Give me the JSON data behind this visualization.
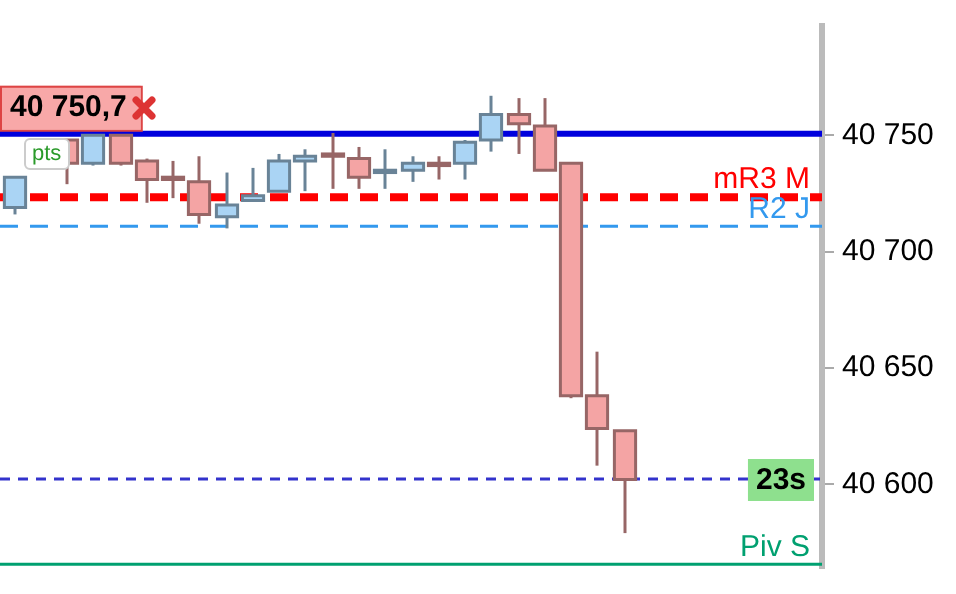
{
  "chart_data": {
    "type": "candlestick",
    "categories": [
      null,
      null,
      null,
      null,
      null,
      null,
      null,
      null,
      null,
      null,
      null,
      null,
      null,
      null,
      null,
      null,
      null,
      null,
      null,
      null,
      null,
      null,
      null,
      null,
      null,
      null,
      null,
      null,
      null,
      null,
      null
    ],
    "ohlc": [
      [
        40719,
        40732,
        40716,
        40732
      ],
      null,
      [
        40748,
        40748,
        40729,
        40738
      ],
      [
        40738,
        40750,
        40737,
        40750
      ],
      [
        40750,
        40750,
        40737,
        40738
      ],
      [
        40739,
        40740,
        40721,
        40731
      ],
      [
        40732,
        40739,
        40723,
        40731
      ],
      [
        40730,
        40741,
        40712,
        40716
      ],
      [
        40715,
        40734,
        40710,
        40720
      ],
      [
        40722,
        40736,
        40722,
        40724
      ],
      [
        40726,
        40742,
        40726,
        40739
      ],
      [
        40739,
        40744,
        40726,
        40741
      ],
      [
        40742,
        40751,
        40727,
        40741
      ],
      [
        40740,
        40745,
        40727,
        40732
      ],
      [
        40734,
        40744,
        40727,
        40735
      ],
      [
        40735,
        40741,
        40730,
        40738
      ],
      [
        40738,
        40741,
        40731,
        40737
      ],
      [
        40738,
        40748,
        40731,
        40747
      ],
      [
        40748,
        40767,
        40743,
        40759
      ],
      [
        40759,
        40766,
        40742,
        40755
      ],
      [
        40754,
        40766,
        40735,
        40735
      ],
      [
        40738,
        40738,
        40637,
        40638
      ],
      [
        40638,
        40657,
        40608,
        40624
      ],
      [
        40623,
        40623,
        40579,
        40602
      ],
      null,
      null,
      null,
      null,
      null,
      null,
      null
    ],
    "colors": [
      "#aad4f4",
      null,
      "#f4a4a4",
      "#aad4f4",
      "#f4a4a4",
      "#f4a4a4",
      "#f4a4a4",
      "#f4a4a4",
      "#aad4f4",
      "#aad4f4",
      "#aad4f4",
      "#aad4f4",
      "#f4a4a4",
      "#f4a4a4",
      "#aad4f4",
      "#aad4f4",
      "#f4a4a4",
      "#aad4f4",
      "#aad4f4",
      "#f4a4a4",
      "#f4a4a4",
      "#f4a4a4",
      "#f4a4a4",
      "#f4a4a4",
      null,
      null,
      null,
      null,
      null,
      null,
      null
    ],
    "ylim": [
      40564,
      40797
    ],
    "yticks": [
      {
        "value": 40600,
        "label": "40 600"
      },
      {
        "value": 40650,
        "label": "40 650"
      },
      {
        "value": 40700,
        "label": "40 700"
      },
      {
        "value": 40750,
        "label": "40 750"
      }
    ],
    "tick_labels": "y",
    "grid": false,
    "legend": false,
    "ref_lines": [
      {
        "axis": "y",
        "value": 40750.7,
        "label": "40 750,7",
        "color": "#0000dd",
        "line_style": "solid"
      },
      {
        "axis": "y",
        "value": 40723.4,
        "label": "mR3 M",
        "color": "#ff0000",
        "line_style": "dashed"
      },
      {
        "axis": "y",
        "value": 40710.9,
        "label": "R2 J",
        "color": "#3399ee",
        "line_style": "dashed"
      },
      {
        "axis": "y",
        "value": 40602.3,
        "label": "23s",
        "color": "#3333cc",
        "line_style": "dashed"
      },
      {
        "axis": "y",
        "value": 40565.6,
        "label": "Piv S",
        "color": "#00a070",
        "line_style": "solid"
      }
    ],
    "annotations": [
      "pts"
    ]
  }
}
